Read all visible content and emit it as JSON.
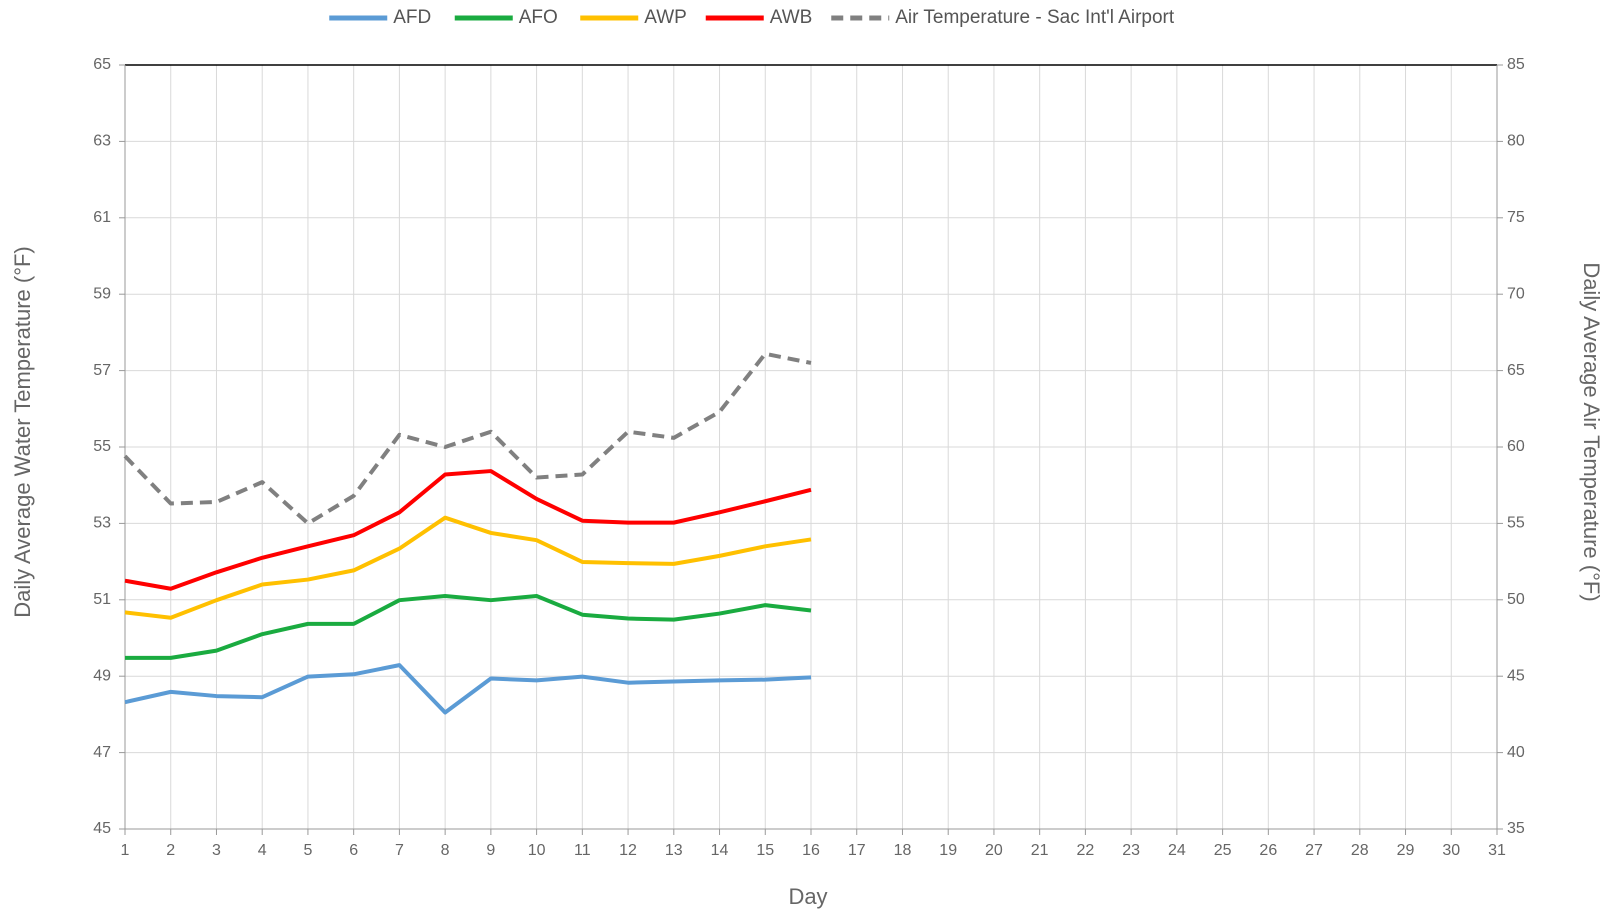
{
  "chart_data": {
    "type": "line",
    "x": [
      1,
      2,
      3,
      4,
      5,
      6,
      7,
      8,
      9,
      10,
      11,
      12,
      13,
      14,
      15,
      16
    ],
    "xlim": [
      1,
      31
    ],
    "xticks": [
      1,
      2,
      3,
      4,
      5,
      6,
      7,
      8,
      9,
      10,
      11,
      12,
      13,
      14,
      15,
      16,
      17,
      18,
      19,
      20,
      21,
      22,
      23,
      24,
      25,
      26,
      27,
      28,
      29,
      30,
      31
    ],
    "ylim": [
      45,
      65
    ],
    "yticks": [
      45,
      47,
      49,
      51,
      53,
      55,
      57,
      59,
      61,
      63,
      65
    ],
    "y2lim": [
      35,
      85
    ],
    "y2ticks": [
      35,
      40,
      45,
      50,
      55,
      60,
      65,
      70,
      75,
      80,
      85
    ],
    "xlabel": "Day",
    "ylabel": "Daily Average Water Temperature (°F)",
    "y2label": "Daily Average Air Temperature (°F)",
    "grid": true,
    "legend": "top",
    "series": [
      {
        "name": "AFD",
        "color": "#5b9bd5",
        "values": [
          48.32,
          48.59,
          48.48,
          48.45,
          48.99,
          49.05,
          49.29,
          48.05,
          48.94,
          48.89,
          48.99,
          48.83,
          48.86,
          48.89,
          48.91,
          48.97
        ]
      },
      {
        "name": "AFO",
        "color": "#1aab40",
        "values": [
          49.48,
          49.48,
          49.67,
          50.1,
          50.37,
          50.37,
          50.99,
          51.1,
          50.99,
          51.1,
          50.61,
          50.51,
          50.48,
          50.64,
          50.86,
          50.72
        ]
      },
      {
        "name": "AWP",
        "color": "#ffc000",
        "values": [
          50.67,
          50.53,
          50.99,
          51.4,
          51.53,
          51.77,
          52.34,
          53.15,
          52.75,
          52.56,
          51.99,
          51.96,
          51.94,
          52.15,
          52.4,
          52.58
        ]
      },
      {
        "name": "AWB",
        "color": "#ff0000",
        "values": [
          51.5,
          51.29,
          51.72,
          52.1,
          52.4,
          52.69,
          53.29,
          54.28,
          54.37,
          53.64,
          53.07,
          53.02,
          53.02,
          53.29,
          53.58,
          53.88
        ]
      },
      {
        "name": "Air Temperature - Sac Int'l Airport",
        "color": "#808080",
        "dashed": true,
        "axis": "y2",
        "values": [
          59.4,
          56.3,
          56.4,
          57.7,
          55.0,
          56.8,
          60.8,
          60.0,
          61.0,
          58.0,
          58.2,
          61.0,
          60.6,
          62.3,
          66.1,
          65.5
        ]
      }
    ]
  }
}
